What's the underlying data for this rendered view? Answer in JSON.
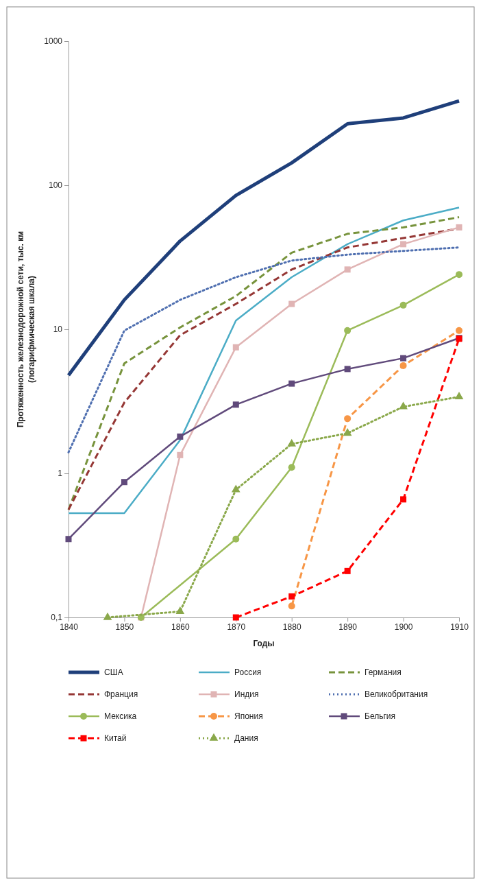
{
  "chart_data": {
    "type": "line",
    "xlabel": "Годы",
    "ylabel": "Протяженность железнодорожной сети, тыс. км\n(логарифмическая шкала)",
    "log": "y",
    "legend": "bottom",
    "x": [
      1840,
      1850,
      1860,
      1870,
      1880,
      1890,
      1900,
      1910
    ],
    "xlim": [
      1840,
      1910
    ],
    "xticks": [
      1840,
      1850,
      1860,
      1870,
      1880,
      1890,
      1900,
      1910
    ],
    "ylim": [
      0.1,
      1000
    ],
    "yticks": [
      {
        "value": 0.1,
        "label": "0,1"
      },
      1,
      10,
      100,
      1000
    ],
    "series": [
      {
        "name": "США",
        "color": "#1f3f7a",
        "line_style": "solid",
        "marker": "none",
        "values": [
          4.8,
          16,
          41,
          85,
          143,
          267,
          293,
          385
        ]
      },
      {
        "name": "Россия",
        "color": "#4bacc6",
        "line_style": "solid",
        "marker": "none",
        "values": [
          0.53,
          0.53,
          1.7,
          11.5,
          23,
          39,
          57,
          70
        ]
      },
      {
        "name": "Германия",
        "color": "#77933c",
        "line_style": "dashed",
        "marker": "none",
        "values": [
          0.56,
          5.8,
          10.3,
          17,
          34,
          46,
          51,
          60
        ]
      },
      {
        "name": "Франция",
        "color": "#953735",
        "line_style": "dashed",
        "marker": "none",
        "values": [
          0.56,
          3.1,
          9.1,
          15,
          26,
          37,
          43,
          50
        ]
      },
      {
        "name": "Индия",
        "color": "#e0b4b4",
        "line_style": "solid",
        "marker": "square",
        "x": [
          1853,
          1860,
          1870,
          1880,
          1890,
          1900,
          1910
        ],
        "values": [
          0.1,
          1.34,
          7.5,
          15,
          26,
          39,
          51
        ]
      },
      {
        "name": "Великобритания",
        "color": "#4f6fb0",
        "line_style": "dotted",
        "marker": "none",
        "values": [
          1.4,
          9.8,
          16,
          23,
          30,
          33,
          35,
          37
        ]
      },
      {
        "name": "Мексика",
        "color": "#9bbb59",
        "line_style": "solid",
        "marker": "circle",
        "x": [
          1853,
          1870,
          1880,
          1890,
          1900,
          1910
        ],
        "values": [
          0.1,
          0.35,
          1.1,
          9.8,
          14.7,
          24
        ]
      },
      {
        "name": "Япония",
        "color": "#f79646",
        "line_style": "dashed",
        "marker": "circle",
        "x": [
          1880,
          1890,
          1900,
          1910
        ],
        "values": [
          0.12,
          2.4,
          5.6,
          9.8
        ]
      },
      {
        "name": "Бельгия",
        "color": "#604a7b",
        "line_style": "solid",
        "marker": "square",
        "values": [
          0.35,
          0.87,
          1.8,
          3.0,
          4.2,
          5.3,
          6.3,
          8.7
        ]
      },
      {
        "name": "Китай",
        "color": "#ff0000",
        "line_style": "dashed",
        "marker": "square",
        "x": [
          1870,
          1880,
          1890,
          1900,
          1910
        ],
        "values": [
          0.1,
          0.14,
          0.21,
          0.66,
          8.6
        ]
      },
      {
        "name": "Дания",
        "color": "#8aa84a",
        "line_style": "dotted",
        "marker": "triangle",
        "x": [
          1847,
          1860,
          1870,
          1880,
          1890,
          1900,
          1910
        ],
        "values": [
          0.1,
          0.11,
          0.77,
          1.6,
          1.9,
          2.9,
          3.4
        ]
      }
    ]
  }
}
